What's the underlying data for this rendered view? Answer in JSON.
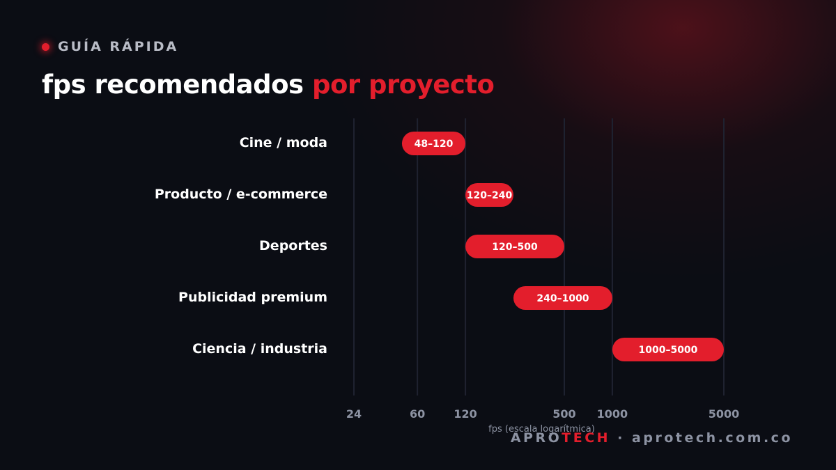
{
  "header": {
    "eyebrow": "GUÍA RÁPIDA",
    "title_main": "fps recomendados",
    "title_accent": "por proyecto"
  },
  "chart_data": {
    "type": "bar",
    "orientation": "horizontal-range",
    "scale": "log",
    "xlabel": "fps (escala logarítmica)",
    "xticks": [
      24,
      60,
      120,
      500,
      1000,
      5000
    ],
    "xlim": [
      24,
      5000
    ],
    "grid": true,
    "categories": [
      "Cine / moda",
      "Producto / e-commerce",
      "Deportes",
      "Publicidad premium",
      "Ciencia / industria"
    ],
    "ranges": [
      {
        "min": 48,
        "max": 120,
        "label": "48–120"
      },
      {
        "min": 120,
        "max": 240,
        "label": "120–240"
      },
      {
        "min": 120,
        "max": 500,
        "label": "120–500"
      },
      {
        "min": 240,
        "max": 1000,
        "label": "240–1000"
      },
      {
        "min": 1000,
        "max": 5000,
        "label": "1000–5000"
      }
    ],
    "colors": {
      "bar": "#e31e2c",
      "grid": "#1f2230",
      "tick": "#8d93a3",
      "category": "#ffffff"
    }
  },
  "footer": {
    "brand_a": "APRO",
    "brand_b": "TECH",
    "separator": "·",
    "site": "aprotech.com.co"
  }
}
